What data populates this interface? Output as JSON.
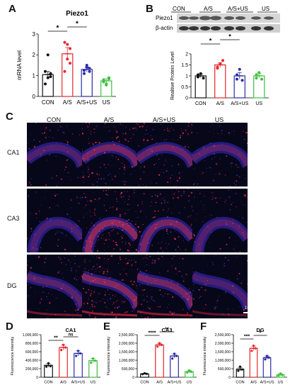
{
  "panels": {
    "a": {
      "letter": "A",
      "title": "Piezo1",
      "ylabel": "mRNA level",
      "sig": [
        {
          "label": "*"
        },
        {
          "label": "*"
        }
      ]
    },
    "b": {
      "letter": "B",
      "blot_labels": [
        "Piezo1",
        "β-actin"
      ],
      "group_labels": [
        "CON",
        "A/S",
        "A/S+US",
        "US"
      ],
      "ylabel": "Realtive Protein Level",
      "sig": [
        {
          "label": "*"
        },
        {
          "label": "*"
        }
      ]
    },
    "c": {
      "letter": "C",
      "columns": [
        "CON",
        "A/S",
        "A/S+US",
        "US"
      ],
      "rows": [
        "CA1",
        "CA3",
        "DG"
      ],
      "scale_bar": "100μm"
    },
    "d": {
      "letter": "D",
      "title": "CA1",
      "ylabel": "Fluorescence intensity",
      "sig": [
        "**",
        "ns"
      ]
    },
    "e": {
      "letter": "E",
      "title": "CA3",
      "ylabel": "Fluorescence intensity",
      "sig": [
        "****",
        "**"
      ]
    },
    "f": {
      "letter": "F",
      "title": "DG",
      "ylabel": "Fluorescence intensity",
      "sig": [
        "***",
        "*"
      ]
    }
  },
  "chart_data": [
    {
      "type": "bar",
      "panel": "A",
      "title": "Piezo1",
      "ylabel": "mRNA level",
      "categories": [
        "CON",
        "A/S",
        "A/S+US",
        "US"
      ],
      "values": [
        1.05,
        2.05,
        1.3,
        0.75
      ],
      "errors": [
        0.15,
        0.3,
        0.12,
        0.1
      ],
      "ylim": [
        0,
        3
      ],
      "yticks": [
        0,
        1,
        2,
        3
      ],
      "colors": [
        "#111111",
        "#e8262b",
        "#2b2ba8",
        "#3fbf3f"
      ],
      "points": [
        [
          0.6,
          0.9,
          1.1,
          1.2,
          2.0,
          0.95
        ],
        [
          1.2,
          2.5,
          2.3,
          2.6,
          1.8,
          1.6
        ],
        [
          1.1,
          1.5,
          1.35,
          1.25,
          1.4,
          1.2
        ],
        [
          0.7,
          0.55,
          0.9,
          0.8,
          0.6,
          0.85
        ]
      ]
    },
    {
      "type": "bar",
      "panel": "B",
      "ylabel": "Realtive Protein Level",
      "categories": [
        "CON",
        "A/S",
        "A/S+US",
        "US"
      ],
      "values": [
        1.0,
        1.5,
        1.0,
        1.0
      ],
      "errors": [
        0.08,
        0.1,
        0.15,
        0.1
      ],
      "ylim": [
        0,
        2
      ],
      "yticks": [
        0,
        0.5,
        1.0,
        1.5,
        2.0
      ],
      "colors": [
        "#111111",
        "#e8262b",
        "#2b2ba8",
        "#3fbf3f"
      ],
      "points": [
        [
          0.95,
          1.1,
          0.9,
          1.05
        ],
        [
          1.35,
          1.55,
          1.7,
          1.4
        ],
        [
          0.85,
          1.3,
          0.8,
          1.05
        ],
        [
          0.9,
          1.15,
          0.85,
          1.05
        ]
      ]
    },
    {
      "type": "bar",
      "panel": "D",
      "title": "CA1",
      "ylabel": "Fluorescence intensity",
      "categories": [
        "CON",
        "A/S",
        "A/S+US",
        "US"
      ],
      "values": [
        280000,
        700000,
        560000,
        390000
      ],
      "errors": [
        40000,
        60000,
        60000,
        50000
      ],
      "ylim": [
        0,
        1000000
      ],
      "yticks": [
        0,
        200000,
        400000,
        600000,
        800000,
        1000000
      ],
      "ytick_labels": [
        "0",
        "200,000",
        "400,000",
        "600,000",
        "800,000",
        "1,000,000"
      ],
      "colors": [
        "#111111",
        "#e8262b",
        "#2b2ba8",
        "#3fbf3f"
      ],
      "points": [
        [
          250000,
          330000,
          260000
        ],
        [
          640000,
          760000,
          700000
        ],
        [
          500000,
          620000,
          560000
        ],
        [
          340000,
          440000,
          390000
        ]
      ]
    },
    {
      "type": "bar",
      "panel": "E",
      "title": "CA3",
      "ylabel": "Fluorescence intensity",
      "categories": [
        "CON",
        "A/S",
        "A/S+US",
        "US"
      ],
      "values": [
        200000,
        1900000,
        1250000,
        330000
      ],
      "errors": [
        30000,
        90000,
        120000,
        70000
      ],
      "ylim": [
        0,
        2500000
      ],
      "yticks": [
        0,
        500000,
        1000000,
        1500000,
        2000000,
        2500000
      ],
      "ytick_labels": [
        "0",
        "500,000",
        "1,000,000",
        "1,500,000",
        "2,000,000",
        "2,500,000"
      ],
      "colors": [
        "#111111",
        "#e8262b",
        "#2b2ba8",
        "#3fbf3f"
      ],
      "points": [
        [
          180000,
          230000,
          200000
        ],
        [
          1800000,
          2000000,
          1900000
        ],
        [
          1100000,
          1380000,
          1250000
        ],
        [
          280000,
          400000,
          320000
        ]
      ]
    },
    {
      "type": "bar",
      "panel": "F",
      "title": "DG",
      "ylabel": "Fluorescence intensity",
      "categories": [
        "CON",
        "A/S",
        "A/S+US",
        "US"
      ],
      "values": [
        480000,
        1700000,
        1150000,
        150000
      ],
      "errors": [
        100000,
        130000,
        100000,
        60000
      ],
      "ylim": [
        0,
        2500000
      ],
      "yticks": [
        0,
        500000,
        1000000,
        1500000,
        2000000,
        2500000
      ],
      "ytick_labels": [
        "0",
        "500,000",
        "1,000,000",
        "1,500,000",
        "2,000,000",
        "2,500,000"
      ],
      "colors": [
        "#111111",
        "#e8262b",
        "#2b2ba8",
        "#3fbf3f"
      ],
      "points": [
        [
          380000,
          620000,
          450000
        ],
        [
          1550000,
          1850000,
          1700000
        ],
        [
          1050000,
          1250000,
          1150000
        ],
        [
          100000,
          220000,
          130000
        ]
      ]
    }
  ]
}
